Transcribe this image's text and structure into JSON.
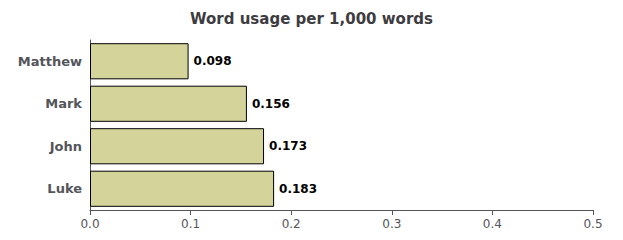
{
  "chart_data": {
    "type": "bar",
    "orientation": "horizontal",
    "title": "Word usage per 1,000 words",
    "categories": [
      "Matthew",
      "Mark",
      "John",
      "Luke"
    ],
    "values": [
      0.098,
      0.156,
      0.173,
      0.183
    ],
    "color": "#d4d49a",
    "xlim": [
      0.0,
      0.5
    ],
    "xticks": [
      {
        "value": 0.0,
        "label": "0.0"
      },
      0.1,
      0.2,
      0.3,
      0.4,
      0.5
    ],
    "data_labels": true,
    "grid": false
  }
}
